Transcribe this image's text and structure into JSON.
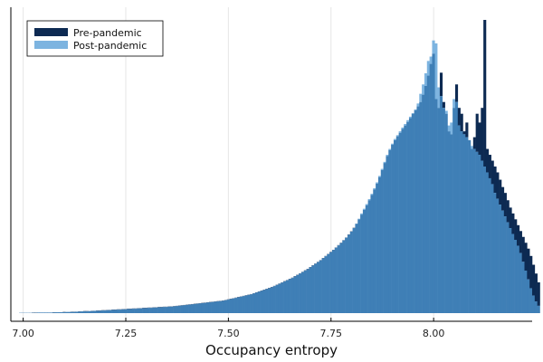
{
  "chart_data": {
    "type": "histogram",
    "xlabel": "Occupancy entropy",
    "ylabel": "",
    "xlim": [
      6.97,
      8.24
    ],
    "ylim": [
      0,
      1
    ],
    "y_axis_ticks_shown": false,
    "grid": "vertical",
    "legend_placement": "top-left",
    "xticks": [
      7.0,
      7.25,
      7.5,
      7.75,
      8.0
    ],
    "xtick_labels": [
      "7.00",
      "7.25",
      "7.50",
      "7.75",
      "8.00"
    ],
    "bin_start": 6.99,
    "bin_width": 0.00625,
    "series": [
      {
        "name": "Pre-pandemic",
        "color": "#0d2a52",
        "values": [
          0.001,
          0.001,
          0.001,
          0.001,
          0.001,
          0.002,
          0.002,
          0.002,
          0.002,
          0.002,
          0.002,
          0.002,
          0.002,
          0.003,
          0.003,
          0.003,
          0.003,
          0.004,
          0.004,
          0.004,
          0.005,
          0.005,
          0.005,
          0.006,
          0.006,
          0.007,
          0.007,
          0.007,
          0.008,
          0.008,
          0.009,
          0.009,
          0.01,
          0.01,
          0.011,
          0.011,
          0.012,
          0.012,
          0.013,
          0.013,
          0.014,
          0.014,
          0.015,
          0.015,
          0.016,
          0.016,
          0.017,
          0.017,
          0.018,
          0.018,
          0.019,
          0.019,
          0.02,
          0.02,
          0.021,
          0.021,
          0.022,
          0.022,
          0.023,
          0.023,
          0.024,
          0.025,
          0.026,
          0.027,
          0.028,
          0.029,
          0.03,
          0.031,
          0.032,
          0.033,
          0.034,
          0.035,
          0.036,
          0.037,
          0.038,
          0.039,
          0.04,
          0.041,
          0.042,
          0.043,
          0.045,
          0.047,
          0.049,
          0.051,
          0.053,
          0.055,
          0.057,
          0.059,
          0.061,
          0.063,
          0.065,
          0.068,
          0.071,
          0.074,
          0.077,
          0.08,
          0.083,
          0.086,
          0.089,
          0.093,
          0.097,
          0.101,
          0.105,
          0.109,
          0.113,
          0.117,
          0.121,
          0.126,
          0.131,
          0.136,
          0.141,
          0.146,
          0.151,
          0.157,
          0.163,
          0.169,
          0.175,
          0.181,
          0.188,
          0.195,
          0.202,
          0.209,
          0.216,
          0.224,
          0.232,
          0.24,
          0.249,
          0.258,
          0.268,
          0.279,
          0.291,
          0.305,
          0.32,
          0.336,
          0.352,
          0.368,
          0.385,
          0.403,
          0.422,
          0.442,
          0.464,
          0.488,
          0.512,
          0.536,
          0.556,
          0.574,
          0.59,
          0.603,
          0.615,
          0.628,
          0.64,
          0.652,
          0.665,
          0.68,
          0.692,
          0.705,
          0.72,
          0.745,
          0.775,
          0.81,
          0.85,
          0.885,
          0.73,
          0.7,
          0.82,
          0.72,
          0.68,
          0.62,
          0.61,
          0.7,
          0.78,
          0.7,
          0.68,
          0.62,
          0.65,
          0.59,
          0.56,
          0.6,
          0.68,
          0.65,
          0.7,
          1.0,
          0.56,
          0.54,
          0.52,
          0.5,
          0.48,
          0.455,
          0.43,
          0.41,
          0.385,
          0.36,
          0.34,
          0.32,
          0.3,
          0.28,
          0.26,
          0.24,
          0.22,
          0.195,
          0.165,
          0.135,
          0.105,
          0.08,
          0.06,
          0.045,
          0.03
        ]
      },
      {
        "name": "Post-pandemic",
        "color": "#7db4e0",
        "values": [
          0.001,
          0.001,
          0.001,
          0.001,
          0.001,
          0.001,
          0.001,
          0.002,
          0.002,
          0.002,
          0.002,
          0.002,
          0.002,
          0.002,
          0.003,
          0.003,
          0.003,
          0.003,
          0.004,
          0.004,
          0.004,
          0.004,
          0.005,
          0.005,
          0.006,
          0.006,
          0.006,
          0.007,
          0.007,
          0.008,
          0.008,
          0.008,
          0.009,
          0.009,
          0.01,
          0.01,
          0.011,
          0.011,
          0.012,
          0.012,
          0.013,
          0.013,
          0.014,
          0.014,
          0.015,
          0.015,
          0.016,
          0.016,
          0.017,
          0.017,
          0.018,
          0.018,
          0.019,
          0.019,
          0.02,
          0.02,
          0.021,
          0.021,
          0.022,
          0.022,
          0.023,
          0.024,
          0.025,
          0.026,
          0.027,
          0.028,
          0.029,
          0.03,
          0.031,
          0.032,
          0.033,
          0.034,
          0.035,
          0.036,
          0.037,
          0.038,
          0.039,
          0.04,
          0.041,
          0.042,
          0.044,
          0.046,
          0.048,
          0.05,
          0.052,
          0.054,
          0.056,
          0.058,
          0.06,
          0.062,
          0.064,
          0.067,
          0.07,
          0.073,
          0.076,
          0.079,
          0.082,
          0.085,
          0.088,
          0.092,
          0.096,
          0.1,
          0.104,
          0.108,
          0.112,
          0.116,
          0.12,
          0.125,
          0.13,
          0.135,
          0.14,
          0.145,
          0.15,
          0.156,
          0.162,
          0.168,
          0.174,
          0.18,
          0.187,
          0.194,
          0.201,
          0.208,
          0.215,
          0.223,
          0.231,
          0.239,
          0.248,
          0.257,
          0.267,
          0.278,
          0.29,
          0.305,
          0.322,
          0.34,
          0.356,
          0.372,
          0.389,
          0.407,
          0.426,
          0.446,
          0.468,
          0.492,
          0.516,
          0.54,
          0.56,
          0.578,
          0.594,
          0.607,
          0.62,
          0.633,
          0.645,
          0.658,
          0.67,
          0.682,
          0.695,
          0.715,
          0.748,
          0.78,
          0.818,
          0.86,
          0.875,
          0.93,
          0.92,
          0.77,
          0.74,
          0.7,
          0.69,
          0.64,
          0.65,
          0.73,
          0.72,
          0.64,
          0.62,
          0.61,
          0.6,
          0.59,
          0.57,
          0.56,
          0.55,
          0.54,
          0.52,
          0.5,
          0.48,
          0.46,
          0.44,
          0.41,
          0.39,
          0.37,
          0.35,
          0.33,
          0.31,
          0.29,
          0.27,
          0.25,
          0.23,
          0.205,
          0.175,
          0.145,
          0.115,
          0.085,
          0.06,
          0.04,
          0.025
        ]
      }
    ]
  }
}
